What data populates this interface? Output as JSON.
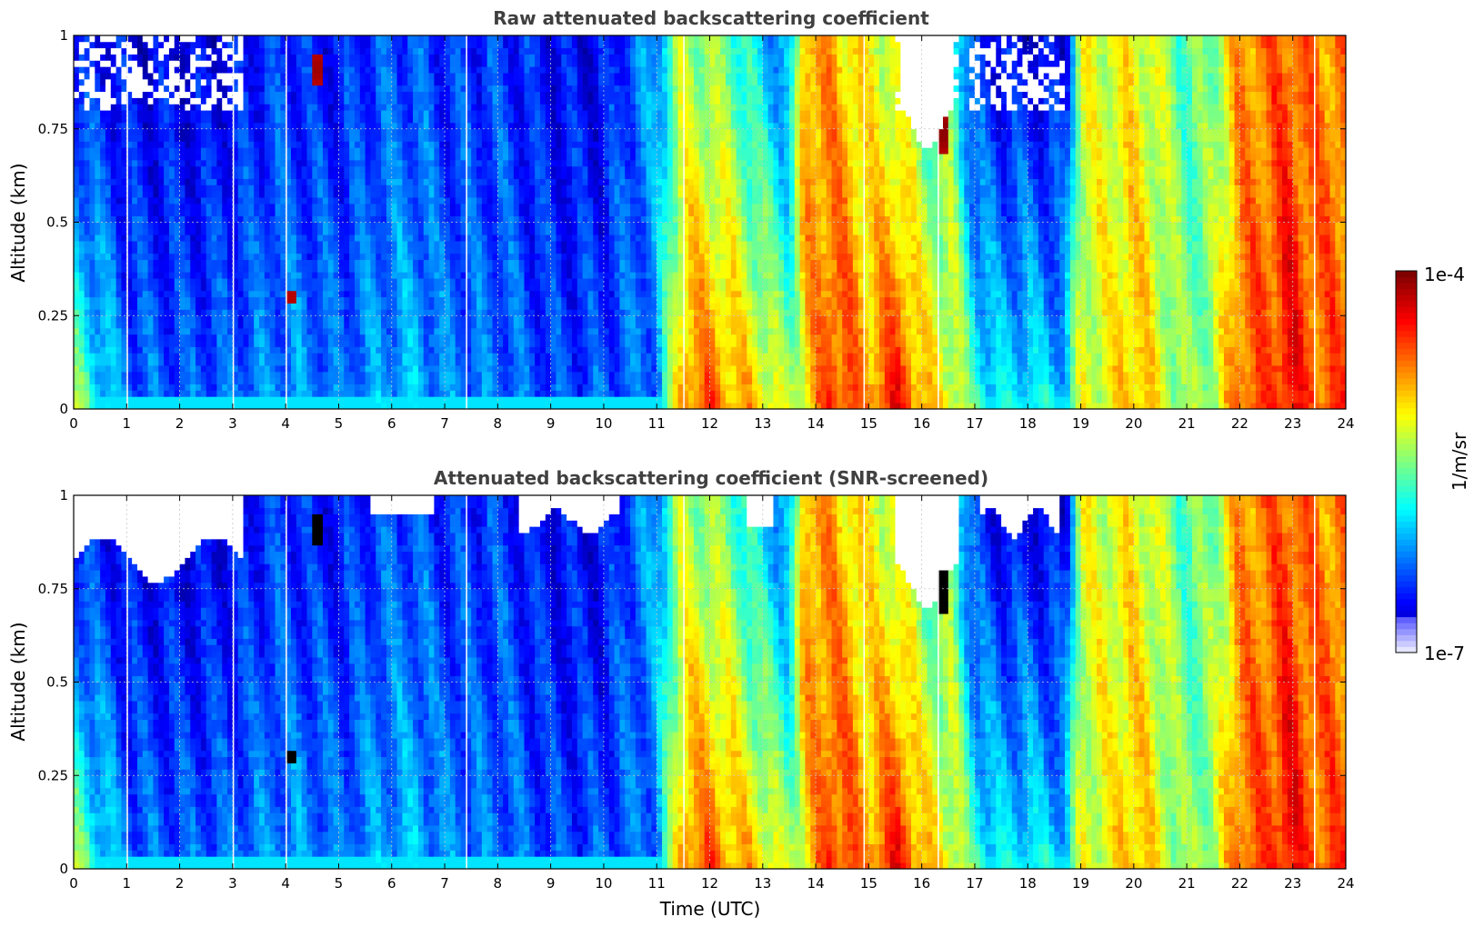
{
  "chart_data": [
    {
      "type": "heatmap",
      "title": "Raw attenuated backscattering coefficient",
      "xlabel": "",
      "ylabel": "Altitude (km)",
      "xlim": [
        0,
        24
      ],
      "ylim": [
        0,
        1
      ],
      "xticks": [
        "0",
        "1",
        "2",
        "3",
        "4",
        "5",
        "6",
        "7",
        "8",
        "9",
        "10",
        "11",
        "12",
        "13",
        "14",
        "15",
        "16",
        "17",
        "18",
        "19",
        "20",
        "21",
        "22",
        "23",
        "24"
      ],
      "yticks": [
        "0",
        "0.25",
        "0.5",
        "0.75",
        "1"
      ],
      "grid": true,
      "screened": false
    },
    {
      "type": "heatmap",
      "title": "Attenuated backscattering coefficient (SNR-screened)",
      "xlabel": "Time (UTC)",
      "ylabel": "Altitude (km)",
      "xlim": [
        0,
        24
      ],
      "ylim": [
        0,
        1
      ],
      "xticks": [
        "0",
        "1",
        "2",
        "3",
        "4",
        "5",
        "6",
        "7",
        "8",
        "9",
        "10",
        "11",
        "12",
        "13",
        "14",
        "15",
        "16",
        "17",
        "18",
        "19",
        "20",
        "21",
        "22",
        "23",
        "24"
      ],
      "yticks": [
        "0",
        "0.25",
        "0.5",
        "0.75",
        "1"
      ],
      "grid": true,
      "screened": true
    }
  ],
  "colorbar": {
    "label": "1/m/sr",
    "max_label": "1e-4",
    "min_label": "1e-7",
    "scale": "log",
    "colormap": "jet"
  },
  "intensity_profile": {
    "times": [
      0,
      0.3,
      0.8,
      1.0,
      2.0,
      3.0,
      4.0,
      4.5,
      5.0,
      6.0,
      6.5,
      7.0,
      8.0,
      9.0,
      10.0,
      11.0,
      11.5,
      12.0,
      12.5,
      13.0,
      13.5,
      13.8,
      14.3,
      15.0,
      15.6,
      16.0,
      16.6,
      17.0,
      17.5,
      18.0,
      18.7,
      19.0,
      19.5,
      20.0,
      20.5,
      21.0,
      21.5,
      22.0,
      22.5,
      22.9,
      23.2,
      23.6
    ],
    "low_levels": [
      0.55,
      0.45,
      0.3,
      0.25,
      0.22,
      0.23,
      0.28,
      0.27,
      0.24,
      0.3,
      0.32,
      0.26,
      0.24,
      0.2,
      0.21,
      0.24,
      0.75,
      0.8,
      0.72,
      0.68,
      0.55,
      0.62,
      0.85,
      0.74,
      0.88,
      0.7,
      0.62,
      0.45,
      0.36,
      0.4,
      0.34,
      0.58,
      0.6,
      0.72,
      0.6,
      0.5,
      0.55,
      0.78,
      0.8,
      0.9,
      0.82,
      0.8
    ],
    "top_levels": [
      0.12,
      0.12,
      0.12,
      0.1,
      0.1,
      0.12,
      0.18,
      0.14,
      0.14,
      0.2,
      0.2,
      0.16,
      0.18,
      0.12,
      0.12,
      0.3,
      0.55,
      0.5,
      0.45,
      0.3,
      0.25,
      0.75,
      0.7,
      0.6,
      0.55,
      0.45,
      0.45,
      0.14,
      0.12,
      0.1,
      0.1,
      0.58,
      0.6,
      0.62,
      0.55,
      0.45,
      0.5,
      0.72,
      0.75,
      0.8,
      0.76,
      0.74
    ]
  },
  "colors": {
    "background": "#ffffff",
    "title_color": "#404040",
    "screened_out": "#ffffff",
    "saturated_screened": "#000000"
  }
}
